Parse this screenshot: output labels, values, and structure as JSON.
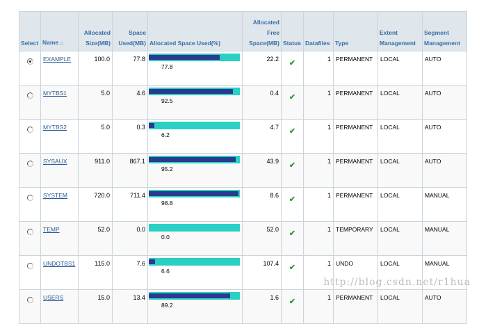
{
  "columns": {
    "select": "Select",
    "name": "Name",
    "allocated_size": "Allocated Size(MB)",
    "space_used": "Space Used(MB)",
    "allocated_space_used": "Allocated Space Used(%)",
    "allocated_free": "Allocated Free Space(MB)",
    "status": "Status",
    "datafiles": "Datafiles",
    "type": "Type",
    "extent_mgmt": "Extent Management",
    "segment_mgmt": "Segment Management"
  },
  "icons": {
    "sort": "sort-triangle-icon",
    "status": "check-icon"
  },
  "colors": {
    "bar_track": "#2ad0c4",
    "bar_fill": "#2b3a8f",
    "header_text": "#3a6ea5",
    "check": "#2f9a3c"
  },
  "status_glyph": "✔",
  "rows": [
    {
      "selected": true,
      "name": "EXAMPLE",
      "allocated_size": "100.0",
      "space_used": "77.8",
      "pct": "77.8",
      "free": "22.2",
      "datafiles": "1",
      "type": "PERMANENT",
      "extent": "LOCAL",
      "segment": "AUTO"
    },
    {
      "selected": false,
      "name": "MYTBS1",
      "allocated_size": "5.0",
      "space_used": "4.6",
      "pct": "92.5",
      "free": "0.4",
      "datafiles": "1",
      "type": "PERMANENT",
      "extent": "LOCAL",
      "segment": "AUTO"
    },
    {
      "selected": false,
      "name": "MYTBS2",
      "allocated_size": "5.0",
      "space_used": "0.3",
      "pct": "6.2",
      "free": "4.7",
      "datafiles": "1",
      "type": "PERMANENT",
      "extent": "LOCAL",
      "segment": "AUTO"
    },
    {
      "selected": false,
      "name": "SYSAUX",
      "allocated_size": "911.0",
      "space_used": "867.1",
      "pct": "95.2",
      "free": "43.9",
      "datafiles": "1",
      "type": "PERMANENT",
      "extent": "LOCAL",
      "segment": "AUTO"
    },
    {
      "selected": false,
      "name": "SYSTEM",
      "allocated_size": "720.0",
      "space_used": "711.4",
      "pct": "98.8",
      "free": "8.6",
      "datafiles": "1",
      "type": "PERMANENT",
      "extent": "LOCAL",
      "segment": "MANUAL"
    },
    {
      "selected": false,
      "name": "TEMP",
      "allocated_size": "52.0",
      "space_used": "0.0",
      "pct": "0.0",
      "free": "52.0",
      "datafiles": "1",
      "type": "TEMPORARY",
      "extent": "LOCAL",
      "segment": "MANUAL"
    },
    {
      "selected": false,
      "name": "UNDOTBS1",
      "allocated_size": "115.0",
      "space_used": "7.6",
      "pct": "6.6",
      "free": "107.4",
      "datafiles": "1",
      "type": "UNDO",
      "extent": "LOCAL",
      "segment": "MANUAL"
    },
    {
      "selected": false,
      "name": "USERS",
      "allocated_size": "15.0",
      "space_used": "13.4",
      "pct": "89.2",
      "free": "1.6",
      "datafiles": "1",
      "type": "PERMANENT",
      "extent": "LOCAL",
      "segment": "AUTO"
    }
  ],
  "watermark": "http://blog.csdn.net/r1hua"
}
